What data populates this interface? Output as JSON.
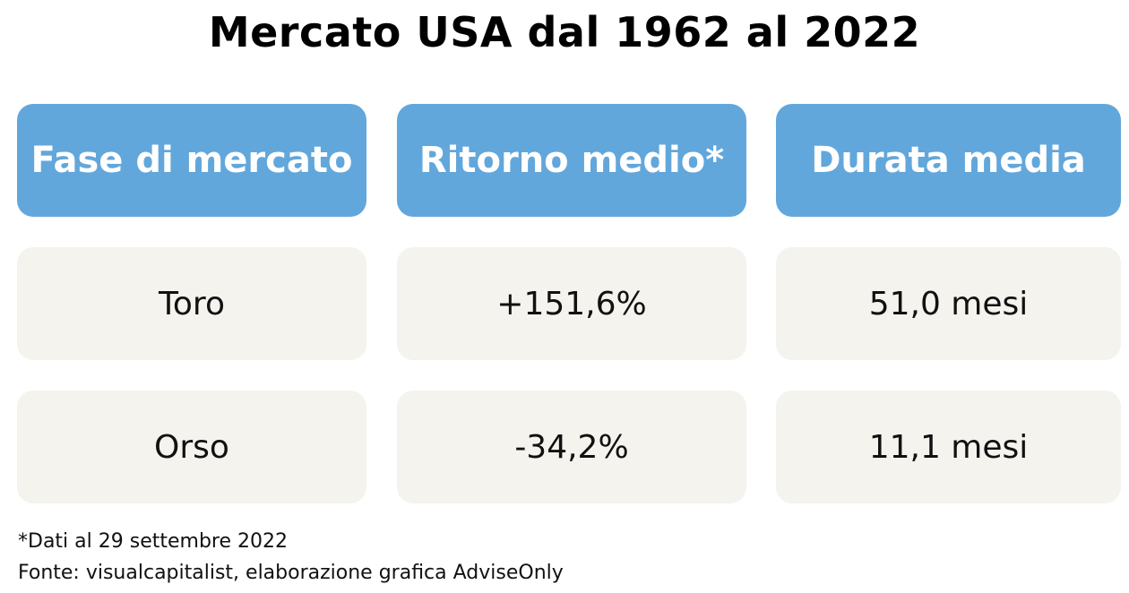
{
  "title": "Mercato USA dal 1962 al 2022",
  "colors": {
    "header_bg": "#62a7db",
    "header_text": "#ffffff",
    "cell_bg": "#f4f3ee",
    "text": "#111111"
  },
  "chart_data": {
    "type": "table",
    "title": "Mercato USA dal 1962 al 2022",
    "columns": [
      "Fase di mercato",
      "Ritorno medio*",
      "Durata media"
    ],
    "rows": [
      [
        "Toro",
        "+151,6%",
        "51,0 mesi"
      ],
      [
        "Orso",
        "-34,2%",
        "11,1 mesi"
      ]
    ]
  },
  "footnotes": {
    "note": "*Dati al 29 settembre 2022",
    "source": "Fonte: visualcapitalist, elaborazione grafica AdviseOnly"
  }
}
